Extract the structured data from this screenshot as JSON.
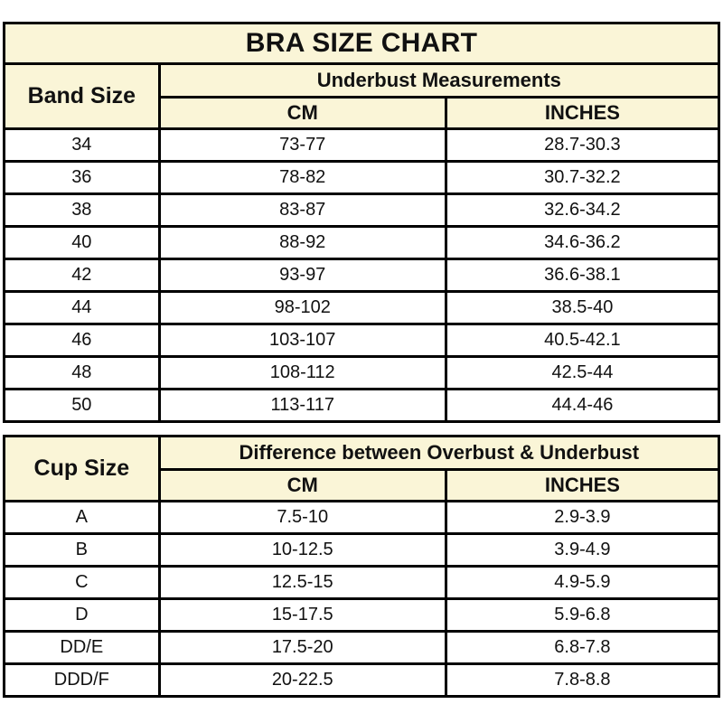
{
  "colors": {
    "page_bg": "#ffffff",
    "header_bg": "#faf5d7",
    "border": "#000000",
    "text": "#111111"
  },
  "chart_data": [
    {
      "type": "table",
      "title": "BRA SIZE CHART",
      "group_header": "Underbust Measurements",
      "columns": [
        "Band Size",
        "CM",
        "INCHES"
      ],
      "rows": [
        [
          "34",
          "73-77",
          "28.7-30.3"
        ],
        [
          "36",
          "78-82",
          "30.7-32.2"
        ],
        [
          "38",
          "83-87",
          "32.6-34.2"
        ],
        [
          "40",
          "88-92",
          "34.6-36.2"
        ],
        [
          "42",
          "93-97",
          "36.6-38.1"
        ],
        [
          "44",
          "98-102",
          "38.5-40"
        ],
        [
          "46",
          "103-107",
          "40.5-42.1"
        ],
        [
          "48",
          "108-112",
          "42.5-44"
        ],
        [
          "50",
          "113-117",
          "44.4-46"
        ]
      ]
    },
    {
      "type": "table",
      "title": "",
      "group_header": "Difference between Overbust & Underbust",
      "columns": [
        "Cup Size",
        "CM",
        "INCHES"
      ],
      "rows": [
        [
          "A",
          "7.5-10",
          "2.9-3.9"
        ],
        [
          "B",
          "10-12.5",
          "3.9-4.9"
        ],
        [
          "C",
          "12.5-15",
          "4.9-5.9"
        ],
        [
          "D",
          "15-17.5",
          "5.9-6.8"
        ],
        [
          "DD/E",
          "17.5-20",
          "6.8-7.8"
        ],
        [
          "DDD/F",
          "20-22.5",
          "7.8-8.8"
        ]
      ]
    }
  ]
}
